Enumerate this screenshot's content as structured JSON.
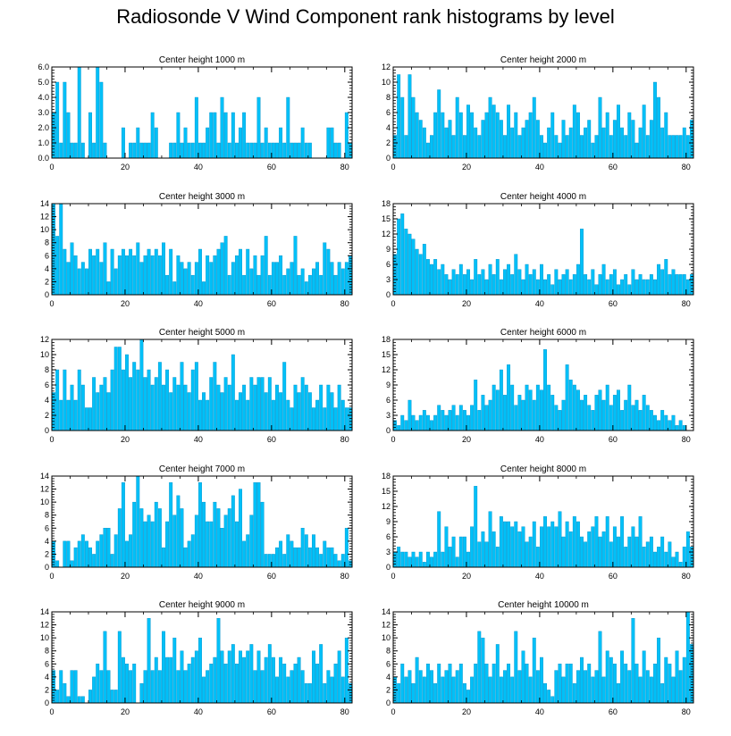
{
  "title": "Radiosonde V Wind Component rank histograms by level",
  "colors": {
    "bar": "#00c0f8",
    "bar_edge": "#008fc8",
    "axis": "#000000"
  },
  "chart_data": [
    {
      "type": "bar",
      "title": "Center height 1000 m",
      "ylim": [
        0,
        6
      ],
      "yticks": [
        0,
        1,
        2,
        3,
        4,
        5,
        6
      ],
      "ytick_labels": [
        "0.0",
        "1.0",
        "2.0",
        "3.0",
        "4.0",
        "5.0",
        "6.0"
      ],
      "xlim": [
        0,
        82
      ],
      "xticks": [
        0,
        20,
        40,
        60,
        80
      ],
      "xtick_labels": [
        "0",
        "20",
        "40",
        "60",
        "80"
      ],
      "values": [
        3,
        5,
        1,
        5,
        3,
        1,
        1,
        6,
        1,
        0,
        3,
        1,
        6,
        5,
        1,
        0,
        0,
        0,
        0,
        2,
        0,
        1,
        1,
        2,
        1,
        1,
        1,
        3,
        2,
        0,
        0,
        0,
        1,
        1,
        3,
        1,
        2,
        1,
        1,
        4,
        1,
        1,
        2,
        3,
        3,
        1,
        4,
        3,
        1,
        3,
        1,
        2,
        3,
        1,
        1,
        1,
        4,
        1,
        2,
        1,
        1,
        1,
        2,
        1,
        4,
        1,
        1,
        1,
        2,
        1,
        1,
        0,
        0,
        0,
        0,
        2,
        2,
        1,
        1,
        0,
        3,
        1
      ]
    },
    {
      "type": "bar",
      "title": "Center height 2000 m",
      "ylim": [
        0,
        12
      ],
      "yticks": [
        0,
        2,
        4,
        6,
        8,
        10,
        12
      ],
      "ytick_labels": [
        "0",
        "2",
        "4",
        "6",
        "8",
        "10",
        "12"
      ],
      "xlim": [
        0,
        82
      ],
      "xticks": [
        0,
        20,
        40,
        60,
        80
      ],
      "xtick_labels": [
        "0",
        "20",
        "40",
        "60",
        "80"
      ],
      "values": [
        3,
        11,
        8,
        3,
        11,
        8,
        6,
        5,
        4,
        2,
        3,
        6,
        9,
        6,
        4,
        5,
        3,
        8,
        6,
        3,
        7,
        6,
        4,
        3,
        5,
        6,
        8,
        7,
        6,
        5,
        3,
        7,
        4,
        6,
        3,
        4,
        5,
        6,
        8,
        5,
        3,
        2,
        4,
        6,
        3,
        2,
        5,
        3,
        4,
        7,
        6,
        3,
        4,
        5,
        2,
        3,
        8,
        4,
        6,
        3,
        5,
        7,
        4,
        3,
        6,
        5,
        2,
        4,
        7,
        3,
        5,
        10,
        8,
        4,
        6,
        3,
        3,
        3,
        3,
        4,
        3,
        5
      ]
    },
    {
      "type": "bar",
      "title": "Center height 3000 m",
      "ylim": [
        0,
        14
      ],
      "yticks": [
        0,
        2,
        4,
        6,
        8,
        10,
        12,
        14
      ],
      "ytick_labels": [
        "0",
        "2",
        "4",
        "6",
        "8",
        "10",
        "12",
        "14"
      ],
      "xlim": [
        0,
        82
      ],
      "xticks": [
        0,
        20,
        40,
        60,
        80
      ],
      "xtick_labels": [
        "0",
        "20",
        "40",
        "60",
        "80"
      ],
      "values": [
        14,
        9,
        14,
        7,
        5,
        8,
        6,
        4,
        5,
        4,
        7,
        6,
        7,
        5,
        8,
        2,
        7,
        4,
        6,
        7,
        6,
        7,
        6,
        8,
        5,
        6,
        7,
        6,
        7,
        6,
        8,
        3,
        7,
        2,
        6,
        5,
        4,
        5,
        3,
        5,
        7,
        2,
        6,
        5,
        6,
        7,
        8,
        9,
        3,
        5,
        6,
        7,
        3,
        7,
        4,
        6,
        3,
        6,
        9,
        3,
        5,
        5,
        6,
        3,
        4,
        5,
        9,
        3,
        4,
        2,
        3,
        4,
        5,
        3,
        8,
        7,
        5,
        3,
        5,
        4,
        5,
        6
      ]
    },
    {
      "type": "bar",
      "title": "Center height 4000 m",
      "ylim": [
        0,
        18
      ],
      "yticks": [
        0,
        3,
        6,
        9,
        12,
        15,
        18
      ],
      "ytick_labels": [
        "0",
        "3",
        "6",
        "9",
        "12",
        "15",
        "18"
      ],
      "xlim": [
        0,
        82
      ],
      "xticks": [
        0,
        20,
        40,
        60,
        80
      ],
      "xtick_labels": [
        "0",
        "20",
        "40",
        "60",
        "80"
      ],
      "values": [
        8,
        15,
        16,
        13,
        12,
        11,
        9,
        8,
        10,
        7,
        6,
        7,
        5,
        6,
        4,
        3,
        5,
        4,
        6,
        4,
        5,
        3,
        7,
        4,
        5,
        3,
        6,
        4,
        7,
        3,
        5,
        6,
        4,
        8,
        5,
        3,
        6,
        4,
        5,
        3,
        6,
        3,
        4,
        2,
        5,
        3,
        4,
        5,
        3,
        4,
        6,
        13,
        4,
        3,
        5,
        2,
        4,
        6,
        3,
        4,
        5,
        2,
        3,
        4,
        2,
        5,
        3,
        4,
        3,
        3,
        4,
        3,
        6,
        5,
        7,
        4,
        5,
        4,
        4,
        4,
        3,
        4
      ]
    },
    {
      "type": "bar",
      "title": "Center height 5000 m",
      "ylim": [
        0,
        12
      ],
      "yticks": [
        0,
        2,
        4,
        6,
        8,
        10,
        12
      ],
      "ytick_labels": [
        "0",
        "2",
        "4",
        "6",
        "8",
        "10",
        "12"
      ],
      "xlim": [
        0,
        82
      ],
      "xticks": [
        0,
        20,
        40,
        60,
        80
      ],
      "xtick_labels": [
        "0",
        "20",
        "40",
        "60",
        "80"
      ],
      "values": [
        5,
        8,
        4,
        8,
        4,
        6,
        4,
        8,
        6,
        3,
        3,
        7,
        5,
        6,
        7,
        5,
        8,
        11,
        11,
        8,
        10,
        7,
        9,
        8,
        12,
        7,
        8,
        6,
        7,
        9,
        6,
        8,
        5,
        7,
        6,
        9,
        6,
        5,
        8,
        9,
        4,
        5,
        4,
        7,
        9,
        6,
        5,
        7,
        6,
        10,
        4,
        5,
        6,
        4,
        7,
        6,
        7,
        7,
        5,
        7,
        4,
        6,
        5,
        9,
        4,
        3,
        6,
        5,
        7,
        6,
        5,
        3,
        4,
        6,
        3,
        6,
        5,
        3,
        6,
        4,
        3,
        3
      ]
    },
    {
      "type": "bar",
      "title": "Center height 6000 m",
      "ylim": [
        0,
        18
      ],
      "yticks": [
        0,
        3,
        6,
        9,
        12,
        15,
        18
      ],
      "ytick_labels": [
        "0",
        "3",
        "6",
        "9",
        "12",
        "15",
        "18"
      ],
      "xlim": [
        0,
        82
      ],
      "xticks": [
        0,
        20,
        40,
        60,
        80
      ],
      "xtick_labels": [
        "0",
        "20",
        "40",
        "60",
        "80"
      ],
      "values": [
        2,
        1,
        3,
        2,
        6,
        3,
        2,
        3,
        4,
        3,
        2,
        3,
        5,
        4,
        3,
        4,
        5,
        3,
        5,
        4,
        3,
        5,
        10,
        4,
        7,
        5,
        6,
        9,
        8,
        12,
        7,
        13,
        9,
        5,
        7,
        6,
        9,
        8,
        6,
        9,
        8,
        16,
        9,
        7,
        5,
        4,
        6,
        13,
        10,
        9,
        8,
        6,
        7,
        5,
        4,
        7,
        8,
        6,
        9,
        5,
        7,
        8,
        4,
        6,
        9,
        5,
        6,
        4,
        7,
        5,
        4,
        3,
        2,
        4,
        3,
        2,
        3,
        1,
        2,
        1,
        0,
        0
      ]
    },
    {
      "type": "bar",
      "title": "Center height 7000 m",
      "ylim": [
        0,
        14
      ],
      "yticks": [
        0,
        2,
        4,
        6,
        8,
        10,
        12,
        14
      ],
      "ytick_labels": [
        "0",
        "2",
        "4",
        "6",
        "8",
        "10",
        "12",
        "14"
      ],
      "xlim": [
        0,
        82
      ],
      "xticks": [
        0,
        20,
        40,
        60,
        80
      ],
      "xtick_labels": [
        "0",
        "20",
        "40",
        "60",
        "80"
      ],
      "values": [
        4,
        1,
        0,
        4,
        4,
        1,
        3,
        4,
        5,
        4,
        3,
        2,
        4,
        5,
        6,
        6,
        2,
        5,
        9,
        13,
        4,
        5,
        10,
        14,
        9,
        7,
        8,
        7,
        10,
        9,
        3,
        7,
        13,
        8,
        11,
        9,
        3,
        4,
        5,
        8,
        13,
        10,
        7,
        7,
        10,
        9,
        6,
        8,
        9,
        11,
        7,
        12,
        4,
        5,
        8,
        13,
        13,
        10,
        2,
        2,
        2,
        3,
        4,
        2,
        5,
        4,
        3,
        3,
        6,
        5,
        3,
        5,
        3,
        2,
        4,
        3,
        3,
        2,
        1,
        2,
        6,
        1
      ]
    },
    {
      "type": "bar",
      "title": "Center height 8000 m",
      "ylim": [
        0,
        18
      ],
      "yticks": [
        0,
        3,
        6,
        9,
        12,
        15,
        18
      ],
      "ytick_labels": [
        "0",
        "3",
        "6",
        "9",
        "12",
        "15",
        "18"
      ],
      "xlim": [
        0,
        82
      ],
      "xticks": [
        0,
        20,
        40,
        60,
        80
      ],
      "xtick_labels": [
        "0",
        "20",
        "40",
        "60",
        "80"
      ],
      "values": [
        3,
        4,
        3,
        3,
        2,
        3,
        2,
        3,
        1,
        3,
        2,
        3,
        11,
        3,
        8,
        4,
        6,
        2,
        6,
        6,
        3,
        8,
        16,
        5,
        7,
        5,
        11,
        7,
        4,
        10,
        9,
        9,
        8,
        9,
        7,
        8,
        5,
        6,
        9,
        4,
        8,
        10,
        8,
        9,
        8,
        11,
        6,
        9,
        7,
        10,
        9,
        6,
        5,
        7,
        8,
        10,
        6,
        7,
        10,
        5,
        8,
        6,
        10,
        4,
        6,
        8,
        6,
        10,
        4,
        5,
        6,
        3,
        4,
        6,
        3,
        5,
        2,
        3,
        1,
        4,
        7,
        4
      ]
    },
    {
      "type": "bar",
      "title": "Center height 9000 m",
      "ylim": [
        0,
        14
      ],
      "yticks": [
        0,
        2,
        4,
        6,
        8,
        10,
        12,
        14
      ],
      "ytick_labels": [
        "0",
        "2",
        "4",
        "6",
        "8",
        "10",
        "12",
        "14"
      ],
      "xlim": [
        0,
        82
      ],
      "xticks": [
        0,
        20,
        40,
        60,
        80
      ],
      "xtick_labels": [
        "0",
        "20",
        "40",
        "60",
        "80"
      ],
      "values": [
        5,
        2,
        5,
        3,
        1,
        5,
        5,
        1,
        1,
        0,
        2,
        4,
        6,
        5,
        11,
        5,
        2,
        2,
        11,
        7,
        6,
        5,
        6,
        0,
        3,
        5,
        13,
        5,
        7,
        5,
        11,
        7,
        7,
        10,
        5,
        8,
        5,
        6,
        7,
        8,
        10,
        4,
        5,
        6,
        7,
        13,
        8,
        6,
        8,
        9,
        6,
        8,
        7,
        8,
        9,
        5,
        8,
        5,
        7,
        9,
        7,
        4,
        7,
        6,
        4,
        5,
        6,
        7,
        5,
        3,
        3,
        8,
        6,
        9,
        3,
        5,
        4,
        6,
        8,
        4,
        10,
        3
      ]
    },
    {
      "type": "bar",
      "title": "Center height 10000 m",
      "ylim": [
        0,
        14
      ],
      "yticks": [
        0,
        2,
        4,
        6,
        8,
        10,
        12,
        14
      ],
      "ytick_labels": [
        "0",
        "2",
        "4",
        "6",
        "8",
        "10",
        "12",
        "14"
      ],
      "xlim": [
        0,
        82
      ],
      "xticks": [
        0,
        20,
        40,
        60,
        80
      ],
      "xtick_labels": [
        "0",
        "20",
        "40",
        "60",
        "80"
      ],
      "values": [
        4,
        3,
        6,
        4,
        5,
        3,
        7,
        5,
        4,
        6,
        5,
        3,
        6,
        4,
        5,
        6,
        4,
        5,
        6,
        3,
        2,
        4,
        6,
        11,
        10,
        6,
        4,
        6,
        9,
        4,
        5,
        6,
        4,
        11,
        5,
        8,
        6,
        4,
        10,
        5,
        7,
        3,
        2,
        1,
        5,
        6,
        4,
        6,
        6,
        3,
        5,
        7,
        5,
        6,
        4,
        5,
        11,
        4,
        8,
        7,
        6,
        3,
        8,
        6,
        5,
        13,
        6,
        4,
        8,
        5,
        4,
        6,
        10,
        3,
        7,
        6,
        4,
        8,
        5,
        7,
        14,
        9
      ]
    }
  ]
}
